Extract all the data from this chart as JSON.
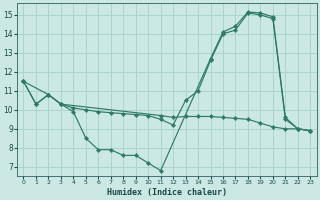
{
  "title": "",
  "xlabel": "Humidex (Indice chaleur)",
  "background_color": "#cce8e4",
  "grid_color": "#aad4cc",
  "line_color": "#2d7a6a",
  "xlim": [
    -0.5,
    23.5
  ],
  "ylim": [
    6.5,
    15.6
  ],
  "xticks": [
    0,
    1,
    2,
    3,
    4,
    5,
    6,
    7,
    8,
    9,
    10,
    11,
    12,
    13,
    14,
    15,
    16,
    17,
    18,
    19,
    20,
    21,
    22,
    23
  ],
  "yticks": [
    7,
    8,
    9,
    10,
    11,
    12,
    13,
    14,
    15
  ],
  "line1_x": [
    0,
    1,
    2,
    3,
    4,
    5,
    6,
    7,
    8,
    9,
    10,
    11,
    15,
    16,
    17,
    18,
    19,
    20,
    21,
    22,
    23
  ],
  "line1_y": [
    11.5,
    10.3,
    10.8,
    10.3,
    9.9,
    8.5,
    7.9,
    7.9,
    7.6,
    7.6,
    7.2,
    6.8,
    12.7,
    14.1,
    14.4,
    15.15,
    15.1,
    14.9,
    9.6,
    9.0,
    8.9
  ],
  "line2_x": [
    0,
    2,
    3,
    4,
    5,
    6,
    7,
    8,
    9,
    10,
    11,
    12,
    13,
    14,
    15,
    16,
    17,
    18,
    19,
    20,
    21,
    22,
    23
  ],
  "line2_y": [
    11.5,
    10.8,
    10.3,
    10.1,
    10.0,
    9.9,
    9.85,
    9.8,
    9.75,
    9.7,
    9.5,
    9.2,
    10.5,
    11.0,
    12.6,
    14.0,
    14.2,
    15.1,
    15.0,
    14.8,
    9.5,
    9.0,
    8.9
  ],
  "line3_x": [
    0,
    1,
    2,
    3,
    11,
    12,
    13,
    14,
    15,
    16,
    17,
    18,
    19,
    20,
    21,
    22,
    23
  ],
  "line3_y": [
    11.5,
    10.3,
    10.8,
    10.3,
    9.7,
    9.6,
    9.65,
    9.65,
    9.65,
    9.6,
    9.55,
    9.5,
    9.3,
    9.1,
    9.0,
    9.0,
    8.9
  ]
}
